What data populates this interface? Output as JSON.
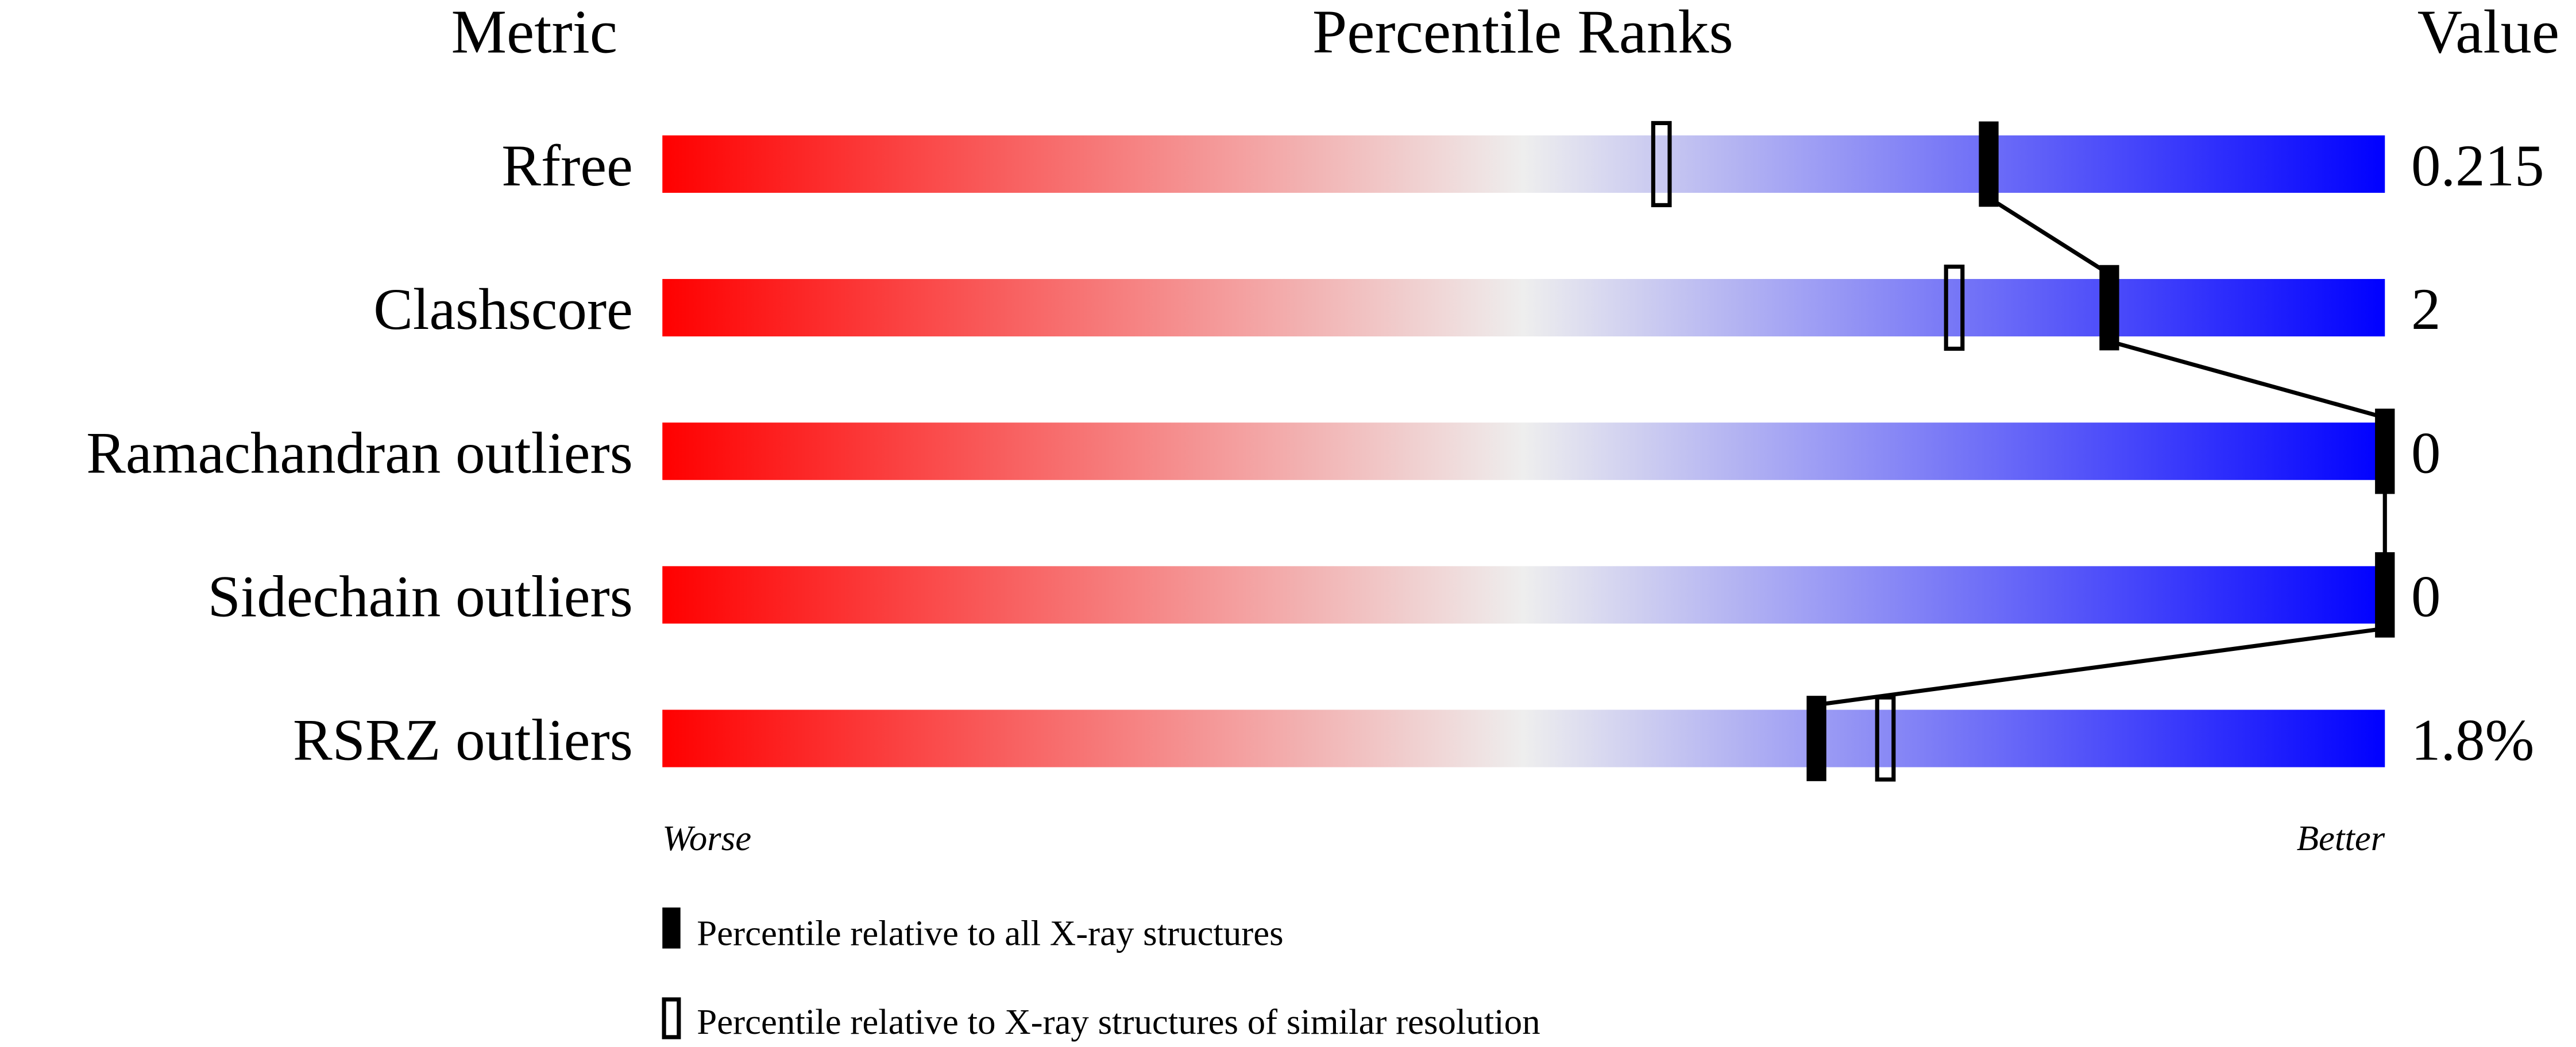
{
  "chart_data": {
    "type": "percentile-bar",
    "headers": {
      "metric": "Metric",
      "ranks": "Percentile Ranks",
      "value": "Value"
    },
    "xlim": [
      0,
      100
    ],
    "gradient_colors": [
      "#ff0000",
      "#eeeeee",
      "#0000ff"
    ],
    "rows": [
      {
        "metric": "Rfree",
        "value": "0.215",
        "percentile_all": 77,
        "percentile_similar": 58
      },
      {
        "metric": "Clashscore",
        "value": "2",
        "percentile_all": 84,
        "percentile_similar": 75
      },
      {
        "metric": "Ramachandran outliers",
        "value": "0",
        "percentile_all": 100,
        "percentile_similar": null
      },
      {
        "metric": "Sidechain outliers",
        "value": "0",
        "percentile_all": 100,
        "percentile_similar": null
      },
      {
        "metric": "RSRZ outliers",
        "value": "1.8%",
        "percentile_all": 67,
        "percentile_similar": 71
      }
    ],
    "axis_labels": {
      "left": "Worse",
      "right": "Better"
    },
    "legend": {
      "all": "Percentile relative to all X-ray structures",
      "similar": "Percentile relative to X-ray structures of similar resolution"
    }
  }
}
